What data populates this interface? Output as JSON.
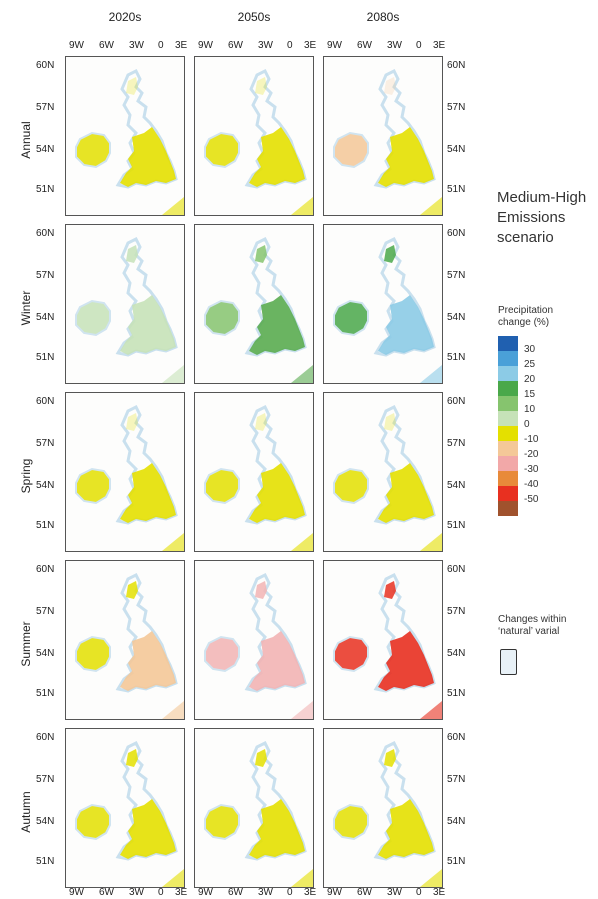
{
  "columns": [
    "2020s",
    "2050s",
    "2080s"
  ],
  "rows": [
    "Annual",
    "Winter",
    "Spring",
    "Summer",
    "Autumn"
  ],
  "lon_ticks": [
    "9W",
    "6W",
    "3W",
    "0",
    "3E"
  ],
  "lat_ticks": [
    "60N",
    "57N",
    "54N",
    "51N"
  ],
  "scenario": {
    "line1": "Medium-High",
    "line2": "Emissions",
    "line3": "scenario"
  },
  "legend": {
    "title_line1": "Precipitation",
    "title_line2": "change (%)",
    "labels": [
      "30",
      "25",
      "20",
      "15",
      "10",
      "0",
      "-10",
      "-20",
      "-30",
      "-40",
      "-50"
    ],
    "colors": [
      "#2060b0",
      "#4aa0d8",
      "#8ccbe6",
      "#4aa84a",
      "#86c46e",
      "#c6e2b8",
      "#e4e000",
      "#f4c898",
      "#f2a8a8",
      "#e88a3a",
      "#e83020",
      "#a0522d"
    ]
  },
  "natural_variability": {
    "line1": "Changes within",
    "line2": "‘natural’ varial"
  },
  "panel_fills": {
    "Annual": [
      "#e4e000",
      "#e4e000",
      "#e4e000"
    ],
    "Winter": [
      "#c6e2b8",
      "#5aac50",
      "#8ccbe6"
    ],
    "Spring": [
      "#e4e000",
      "#e4e000",
      "#e4e000"
    ],
    "Summer": [
      "#f4c898",
      "#f2b4b4",
      "#e83020"
    ],
    "Autumn": [
      "#e4e000",
      "#e4e000",
      "#e4e000"
    ]
  },
  "panel_secondary": {
    "Annual": [
      "#e4e000",
      "#e4e000",
      "#f4c898"
    ],
    "Winter": [
      "#c6e2b8",
      "#86c46e",
      "#4aa84a"
    ],
    "Spring": [
      "#e4e000",
      "#e4e000",
      "#e4e000"
    ],
    "Summer": [
      "#e4e000",
      "#f2b4b4",
      "#e83020"
    ],
    "Autumn": [
      "#e4e000",
      "#e4e000",
      "#e4e000"
    ]
  }
}
